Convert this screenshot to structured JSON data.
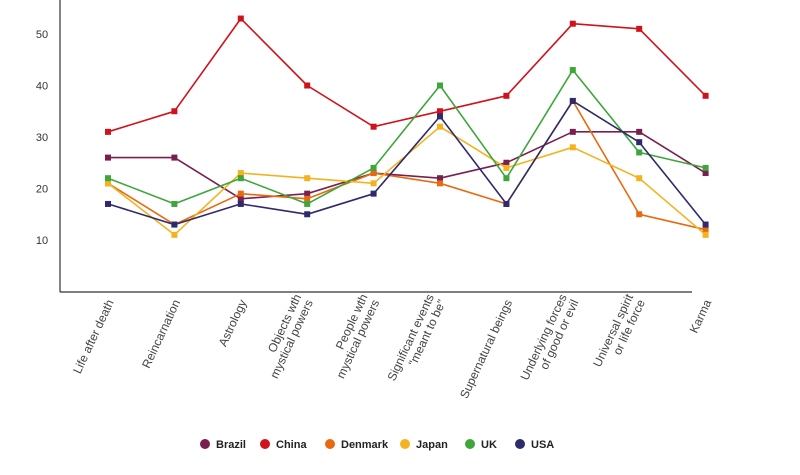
{
  "chart_data": {
    "type": "line",
    "title": "",
    "xlabel": "",
    "ylabel": "",
    "ylim": [
      0,
      55
    ],
    "yticks": [
      10,
      20,
      30,
      40,
      50
    ],
    "grid": false,
    "legend": "bottom",
    "categories": [
      [
        "Life after death"
      ],
      [
        "Reincarnation"
      ],
      [
        "Astrology"
      ],
      [
        "Objects wth",
        "mystical powers"
      ],
      [
        "People wth",
        "mystical powers"
      ],
      [
        "Significant events",
        "\"meant to be\""
      ],
      [
        "Supernatural beings"
      ],
      [
        "Underlying forces",
        "of good or evil"
      ],
      [
        "Universal spirit",
        "or life force"
      ],
      [
        "Karma"
      ]
    ],
    "series": [
      {
        "name": "Brazil",
        "color": "#7a1f4f",
        "values": [
          26,
          26,
          18,
          19,
          23,
          22,
          25,
          31,
          31,
          23
        ]
      },
      {
        "name": "China",
        "color": "#d0121b",
        "values": [
          31,
          35,
          53,
          40,
          32,
          35,
          38,
          52,
          51,
          38
        ]
      },
      {
        "name": "Denmark",
        "color": "#e86a10",
        "values": [
          21,
          13,
          19,
          18,
          23,
          21,
          17,
          37,
          15,
          12
        ]
      },
      {
        "name": "Japan",
        "color": "#f5b21f",
        "values": [
          21,
          11,
          23,
          22,
          21,
          32,
          24,
          28,
          22,
          11
        ]
      },
      {
        "name": "UK",
        "color": "#3ea63a",
        "values": [
          22,
          17,
          22,
          17,
          24,
          40,
          22,
          43,
          27,
          24
        ]
      },
      {
        "name": "USA",
        "color": "#2e2a6e",
        "values": [
          17,
          13,
          17,
          15,
          19,
          34,
          17,
          37,
          29,
          13
        ]
      }
    ]
  }
}
